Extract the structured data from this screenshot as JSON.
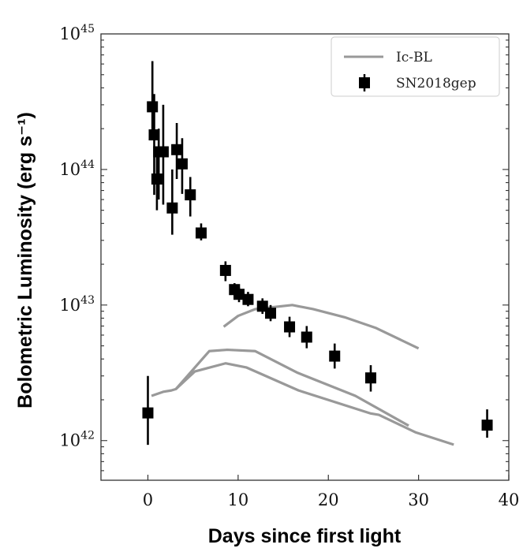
{
  "chart_data": {
    "type": "scatter",
    "title": "",
    "xlabel": "Days since first light",
    "ylabel": "Bolometric Luminosity (erg s⁻¹)",
    "xlim": [
      -5.2,
      40
    ],
    "ylim": [
      5.1e+41,
      1e+45
    ],
    "yscale": "log",
    "grid": false,
    "legend_placement": "top-right",
    "x_ticks": [
      0,
      10,
      20,
      30,
      40
    ],
    "y_ticks": [
      {
        "value": 1e+42,
        "base": "10",
        "exp": "42"
      },
      {
        "value": 1e+43,
        "base": "10",
        "exp": "43"
      },
      {
        "value": 1e+44,
        "base": "10",
        "exp": "44"
      },
      {
        "value": 1e+45,
        "base": "10",
        "exp": "45"
      }
    ],
    "colors": {
      "model": "#999999",
      "data": "#000000"
    },
    "models": {
      "name": "Ic-BL",
      "curves": [
        [
          [
            8.4,
            42.84
          ],
          [
            10.0,
            42.92
          ],
          [
            11.9,
            42.97
          ],
          [
            16.0,
            43.0
          ],
          [
            18.3,
            42.97
          ],
          [
            21.8,
            42.91
          ],
          [
            25.3,
            42.83
          ],
          [
            30.0,
            42.68
          ]
        ],
        [
          [
            0.4,
            42.33
          ],
          [
            1.7,
            42.36
          ],
          [
            2.6,
            42.37
          ],
          [
            3.1,
            42.38
          ],
          [
            6.8,
            42.66
          ],
          [
            8.8,
            42.67
          ],
          [
            11.9,
            42.66
          ],
          [
            16.6,
            42.5
          ],
          [
            23.0,
            42.33
          ],
          [
            28.9,
            42.11
          ]
        ],
        [
          [
            3.1,
            42.38
          ],
          [
            5.2,
            42.51
          ],
          [
            8.6,
            42.57
          ],
          [
            10.9,
            42.54
          ],
          [
            16.7,
            42.37
          ],
          [
            24.7,
            42.2
          ],
          [
            25.6,
            42.19
          ],
          [
            29.7,
            42.06
          ],
          [
            33.9,
            41.97
          ]
        ]
      ],
      "curve_units": "x: days, y: log10 luminosity"
    },
    "data_series": {
      "name": "SN2018gep",
      "points": [
        {
          "x": 0.0,
          "y": 1.6e+42,
          "lo": 9.3e+41,
          "hi": 3e+42
        },
        {
          "x": 0.5,
          "y": 2.9e+44,
          "lo": 1.7e+44,
          "hi": 6.3e+44
        },
        {
          "x": 0.7,
          "y": 1.8e+44,
          "lo": 6.5e+43,
          "hi": 3.6e+44
        },
        {
          "x": 1.0,
          "y": 8.5e+43,
          "lo": 5e+43,
          "hi": 1.4e+44
        },
        {
          "x": 1.2,
          "y": 1.35e+44,
          "lo": 6e+43,
          "hi": 2e+44
        },
        {
          "x": 1.7,
          "y": 1.35e+44,
          "lo": 5.5e+43,
          "hi": 3e+44
        },
        {
          "x": 2.7,
          "y": 5.2e+43,
          "lo": 3.3e+43,
          "hi": 1e+44
        },
        {
          "x": 3.2,
          "y": 1.4e+44,
          "lo": 8.5e+43,
          "hi": 2.2e+44
        },
        {
          "x": 3.8,
          "y": 1.1e+44,
          "lo": 6.6e+43,
          "hi": 1.7e+44
        },
        {
          "x": 4.7,
          "y": 6.5e+43,
          "lo": 4.5e+43,
          "hi": 8.8e+43
        },
        {
          "x": 5.9,
          "y": 3.4e+43,
          "lo": 3e+43,
          "hi": 4e+43
        },
        {
          "x": 8.6,
          "y": 1.8e+43,
          "lo": 1.5e+43,
          "hi": 2.1e+43
        },
        {
          "x": 9.6,
          "y": 1.3e+43,
          "lo": 1.15e+43,
          "hi": 1.45e+43
        },
        {
          "x": 10.1,
          "y": 1.2e+43,
          "lo": 1.05e+43,
          "hi": 1.35e+43
        },
        {
          "x": 11.1,
          "y": 1.1e+43,
          "lo": 9.8e+42,
          "hi": 1.25e+43
        },
        {
          "x": 12.7,
          "y": 9.8e+42,
          "lo": 8.6e+42,
          "hi": 1.12e+43
        },
        {
          "x": 13.6,
          "y": 8.7e+42,
          "lo": 7.6e+42,
          "hi": 1e+43
        },
        {
          "x": 15.7,
          "y": 6.9e+42,
          "lo": 5.8e+42,
          "hi": 8.2e+42
        },
        {
          "x": 17.6,
          "y": 5.8e+42,
          "lo": 4.8e+42,
          "hi": 7e+42
        },
        {
          "x": 20.7,
          "y": 4.2e+42,
          "lo": 3.4e+42,
          "hi": 5.2e+42
        },
        {
          "x": 24.7,
          "y": 2.9e+42,
          "lo": 2.3e+42,
          "hi": 3.6e+42
        },
        {
          "x": 37.6,
          "y": 1.3e+42,
          "lo": 1.05e+42,
          "hi": 1.7e+42
        }
      ]
    }
  }
}
